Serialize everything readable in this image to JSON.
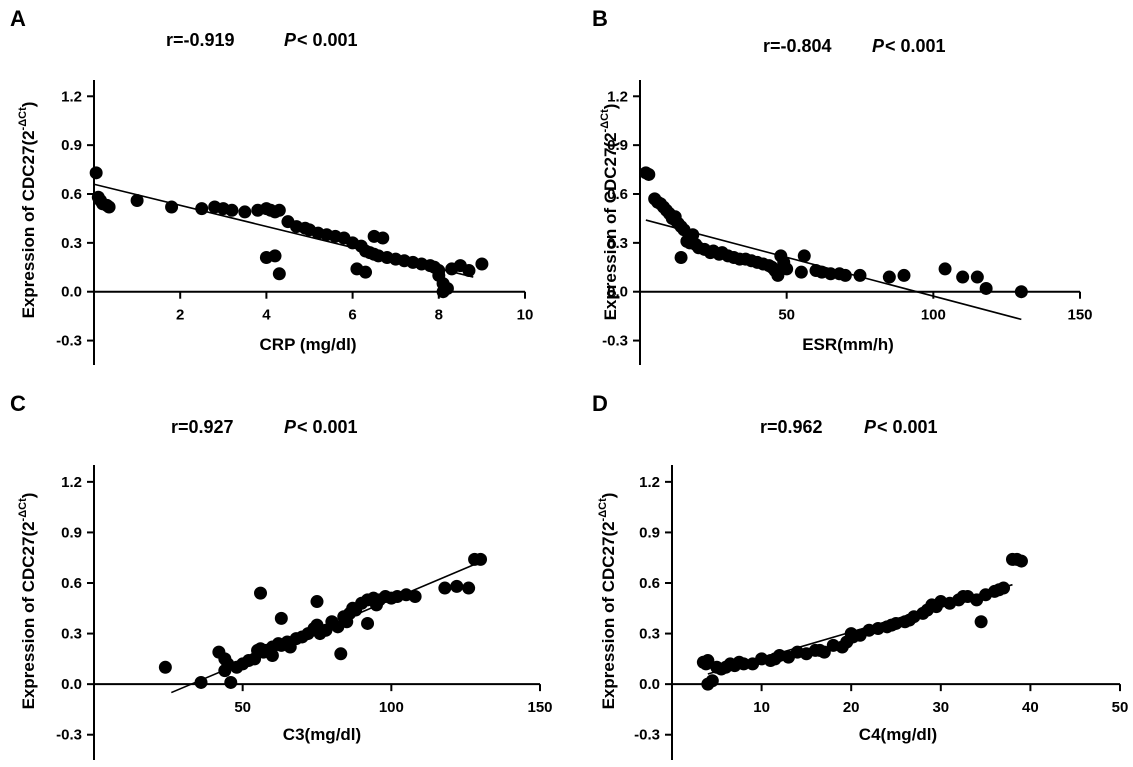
{
  "figure_title": "",
  "chart_data": [
    {
      "type": "scatter",
      "panel": "A",
      "stat_r": "r=-0.919",
      "stat_p_symbol": "P",
      "stat_p_rest": "< 0.001",
      "xlabel": "CRP (mg/dl)",
      "ylabel_main": "Expression of CDC27(2",
      "ylabel_sup": "-ΔCt",
      "ylabel_close": ")",
      "xlim": [
        0,
        10
      ],
      "ylim": [
        -0.45,
        1.3
      ],
      "xticks": [
        2,
        4,
        6,
        8,
        10
      ],
      "yticks": [
        1.2,
        0.9,
        0.6,
        0.3,
        0.0,
        -0.3
      ],
      "ytick_labels": [
        "1.2",
        "0.9",
        "0.6",
        "0.3",
        "0.0",
        "-0.3"
      ],
      "fit": {
        "x": [
          0.0,
          8.8
        ],
        "y": [
          0.66,
          0.09
        ]
      },
      "points": {
        "x": [
          0.05,
          0.1,
          0.15,
          0.2,
          0.3,
          0.35,
          1.0,
          1.8,
          2.5,
          2.8,
          3.0,
          3.2,
          3.5,
          3.8,
          4.0,
          4.1,
          4.2,
          4.3,
          4.0,
          4.2,
          4.3,
          4.5,
          4.7,
          4.9,
          5.0,
          5.2,
          5.4,
          5.6,
          5.8,
          6.0,
          6.2,
          6.3,
          6.4,
          6.5,
          6.6,
          6.7,
          6.8,
          7.0,
          7.2,
          7.4,
          7.6,
          7.8,
          7.9,
          8.0,
          8.1,
          8.2,
          8.3,
          8.5,
          8.7,
          9.0,
          6.1,
          6.3,
          6.5,
          8.0,
          8.1
        ],
        "y": [
          0.73,
          0.58,
          0.56,
          0.54,
          0.53,
          0.52,
          0.56,
          0.52,
          0.51,
          0.52,
          0.51,
          0.5,
          0.49,
          0.5,
          0.51,
          0.5,
          0.49,
          0.5,
          0.21,
          0.22,
          0.11,
          0.43,
          0.4,
          0.39,
          0.38,
          0.36,
          0.35,
          0.34,
          0.33,
          0.3,
          0.28,
          0.25,
          0.24,
          0.23,
          0.22,
          0.33,
          0.21,
          0.2,
          0.19,
          0.18,
          0.17,
          0.16,
          0.15,
          0.1,
          0.05,
          0.02,
          0.14,
          0.16,
          0.13,
          0.17,
          0.14,
          0.12,
          0.34,
          0.13,
          0.0
        ]
      }
    },
    {
      "type": "scatter",
      "panel": "B",
      "stat_r": "r=-0.804",
      "stat_p_symbol": "P",
      "stat_p_rest": "< 0.001",
      "xlabel": "ESR(mm/h)",
      "ylabel_main": "Expression of CDC27(2",
      "ylabel_sup": "-ΔCt",
      "ylabel_close": ")",
      "xlim": [
        0,
        150
      ],
      "ylim": [
        -0.45,
        1.3
      ],
      "xticks": [
        50,
        100,
        150
      ],
      "yticks": [
        1.2,
        0.9,
        0.6,
        0.3,
        0.0,
        -0.3
      ],
      "ytick_labels": [
        "1.2",
        "0.9",
        "0.6",
        "0.3",
        "0.0",
        "-0.3"
      ],
      "fit": {
        "x": [
          2,
          130
        ],
        "y": [
          0.44,
          -0.17
        ]
      },
      "points": {
        "x": [
          2,
          3,
          5,
          6,
          7,
          8,
          9,
          10,
          11,
          12,
          12,
          13,
          14,
          15,
          16,
          17,
          18,
          19,
          20,
          22,
          24,
          25,
          27,
          28,
          30,
          32,
          34,
          36,
          38,
          40,
          42,
          44,
          45,
          46,
          47,
          48,
          49,
          50,
          55,
          56,
          60,
          62,
          65,
          68,
          70,
          75,
          85,
          90,
          104,
          110,
          115,
          118,
          130,
          14,
          16
        ],
        "y": [
          0.73,
          0.72,
          0.57,
          0.55,
          0.54,
          0.52,
          0.5,
          0.48,
          0.45,
          0.44,
          0.46,
          0.42,
          0.4,
          0.38,
          0.31,
          0.3,
          0.35,
          0.29,
          0.27,
          0.26,
          0.24,
          0.25,
          0.23,
          0.24,
          0.22,
          0.21,
          0.2,
          0.2,
          0.19,
          0.18,
          0.17,
          0.16,
          0.15,
          0.13,
          0.1,
          0.22,
          0.18,
          0.14,
          0.12,
          0.22,
          0.13,
          0.12,
          0.11,
          0.11,
          0.1,
          0.1,
          0.09,
          0.1,
          0.14,
          0.09,
          0.09,
          0.02,
          0.0,
          0.21,
          0.31
        ]
      }
    },
    {
      "type": "scatter",
      "panel": "C",
      "stat_r": "r=0.927",
      "stat_p_symbol": "P",
      "stat_p_rest": "< 0.001",
      "xlabel": "C3(mg/dl)",
      "ylabel_main": "Expression of CDC27(2",
      "ylabel_sup": "-ΔCt",
      "ylabel_close": ")",
      "xlim": [
        0,
        150
      ],
      "ylim": [
        -0.45,
        1.3
      ],
      "xticks": [
        50,
        100,
        150
      ],
      "yticks": [
        1.2,
        0.9,
        0.6,
        0.3,
        0.0,
        -0.3
      ],
      "ytick_labels": [
        "1.2",
        "0.9",
        "0.6",
        "0.3",
        "0.0",
        "-0.3"
      ],
      "fit": {
        "x": [
          26,
          132
        ],
        "y": [
          -0.05,
          0.74
        ]
      },
      "points": {
        "x": [
          24,
          36,
          42,
          44,
          45,
          46,
          48,
          50,
          52,
          54,
          55,
          56,
          57,
          58,
          60,
          62,
          63,
          65,
          66,
          68,
          70,
          72,
          74,
          75,
          76,
          78,
          80,
          82,
          84,
          86,
          87,
          88,
          90,
          92,
          94,
          96,
          98,
          100,
          102,
          105,
          108,
          118,
          122,
          126,
          128,
          130,
          56,
          63,
          75,
          83,
          92,
          44,
          60,
          85,
          95
        ],
        "y": [
          0.1,
          0.01,
          0.19,
          0.15,
          0.12,
          0.01,
          0.1,
          0.12,
          0.14,
          0.15,
          0.2,
          0.21,
          0.19,
          0.2,
          0.22,
          0.24,
          0.23,
          0.25,
          0.22,
          0.27,
          0.28,
          0.3,
          0.33,
          0.35,
          0.3,
          0.32,
          0.37,
          0.34,
          0.4,
          0.42,
          0.45,
          0.44,
          0.48,
          0.5,
          0.51,
          0.5,
          0.52,
          0.51,
          0.52,
          0.53,
          0.52,
          0.57,
          0.58,
          0.57,
          0.74,
          0.74,
          0.54,
          0.39,
          0.49,
          0.18,
          0.36,
          0.08,
          0.17,
          0.37,
          0.47
        ]
      }
    },
    {
      "type": "scatter",
      "panel": "D",
      "stat_r": "r=0.962",
      "stat_p_symbol": "P",
      "stat_p_rest": "< 0.001",
      "xlabel": "C4(mg/dl)",
      "ylabel_main": "Expression of CDC27(2",
      "ylabel_sup": "-ΔCt",
      "ylabel_close": ")",
      "xlim": [
        0,
        50
      ],
      "ylim": [
        -0.45,
        1.3
      ],
      "xticks": [
        10,
        20,
        30,
        40,
        50
      ],
      "yticks": [
        1.2,
        0.9,
        0.6,
        0.3,
        0.0,
        -0.3
      ],
      "ytick_labels": [
        "1.2",
        "0.9",
        "0.6",
        "0.3",
        "0.0",
        "-0.3"
      ],
      "fit": {
        "x": [
          4.0,
          38.0
        ],
        "y": [
          0.06,
          0.59
        ]
      },
      "points": {
        "x": [
          3.5,
          3.8,
          4.0,
          4.5,
          5.0,
          5.5,
          6.0,
          6.5,
          7.0,
          7.5,
          8.0,
          9.0,
          10.0,
          11.0,
          12.0,
          13.0,
          14.0,
          15.0,
          16.0,
          17.0,
          18.0,
          19.0,
          19.5,
          20.0,
          21.0,
          22.0,
          23.0,
          24.0,
          25.0,
          26.0,
          27.0,
          28.0,
          28.5,
          29.0,
          30.0,
          31.0,
          32.0,
          33.0,
          34.0,
          35.0,
          36.0,
          37.0,
          38.0,
          38.5,
          39.0,
          34.5,
          4.0,
          20.2,
          24.5,
          29.5,
          16.5,
          11.5,
          36.5,
          26.5,
          32.5
        ],
        "y": [
          0.13,
          0.12,
          0.0,
          0.02,
          0.1,
          0.09,
          0.1,
          0.12,
          0.11,
          0.13,
          0.12,
          0.12,
          0.15,
          0.14,
          0.17,
          0.16,
          0.19,
          0.18,
          0.2,
          0.19,
          0.23,
          0.22,
          0.25,
          0.3,
          0.29,
          0.32,
          0.33,
          0.34,
          0.36,
          0.37,
          0.4,
          0.42,
          0.44,
          0.47,
          0.49,
          0.48,
          0.5,
          0.52,
          0.5,
          0.53,
          0.55,
          0.57,
          0.74,
          0.74,
          0.73,
          0.37,
          0.14,
          0.28,
          0.35,
          0.46,
          0.2,
          0.15,
          0.56,
          0.38,
          0.52
        ]
      }
    }
  ]
}
